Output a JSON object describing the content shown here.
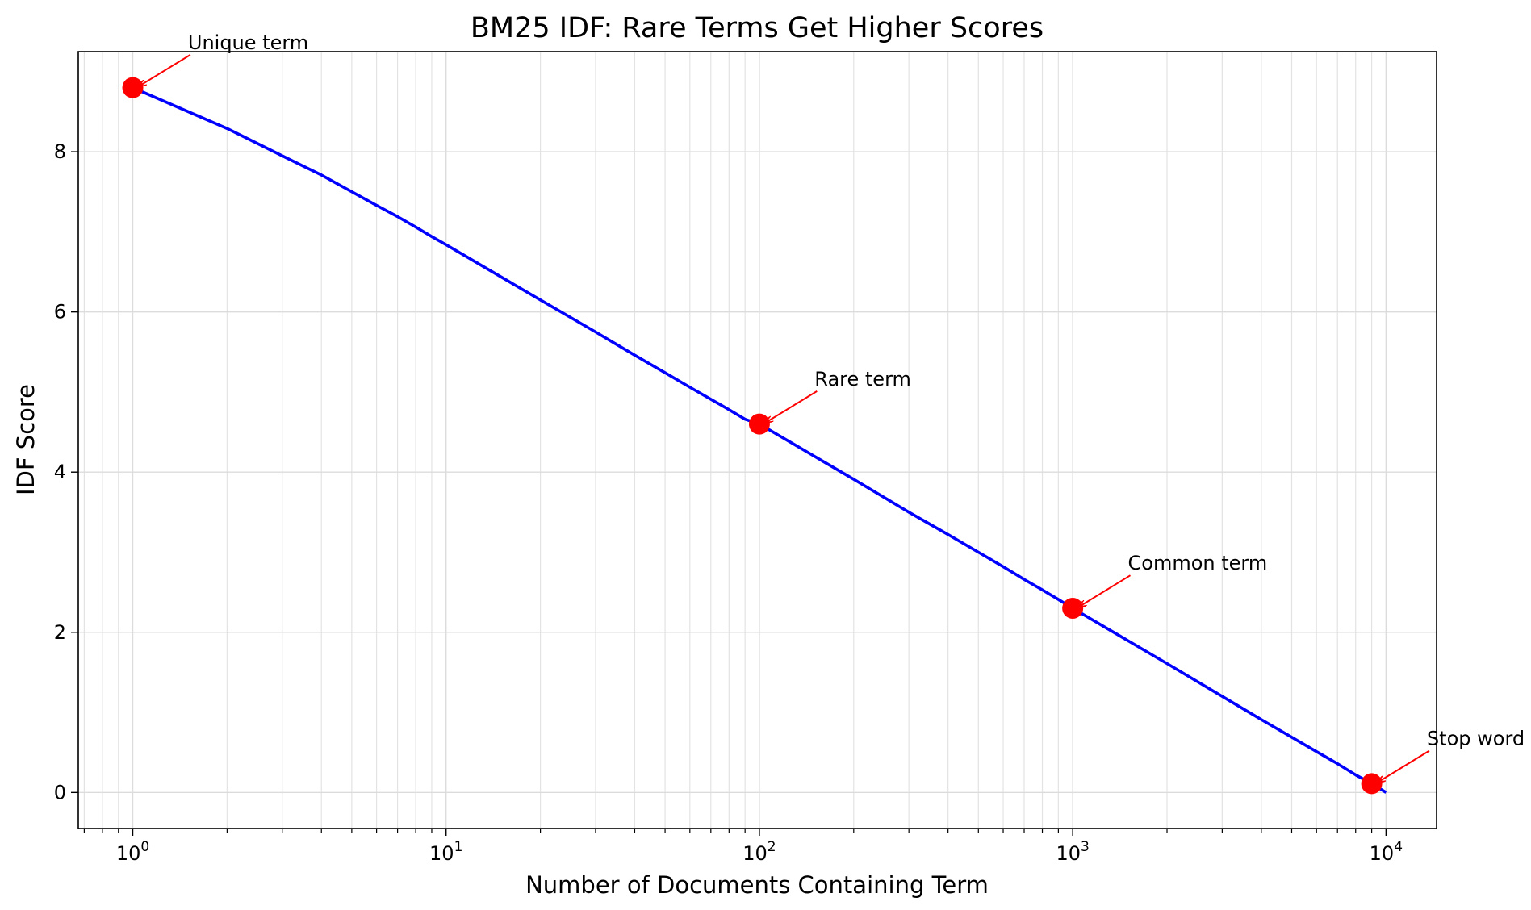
{
  "chart_data": {
    "type": "line",
    "title": "BM25 IDF: Rare Terms Get Higher Scores",
    "xlabel": "Number of Documents Containing Term",
    "ylabel": "IDF Score",
    "xscale": "log",
    "xlim": [
      0.67,
      14500
    ],
    "ylim": [
      -0.45,
      9.25
    ],
    "grid": true,
    "x_ticks": [
      {
        "base": "10",
        "exp": "0"
      },
      {
        "base": "10",
        "exp": "1"
      },
      {
        "base": "10",
        "exp": "2"
      },
      {
        "base": "10",
        "exp": "3"
      },
      {
        "base": "10",
        "exp": "4"
      }
    ],
    "y_ticks": [
      "0",
      "2",
      "4",
      "6",
      "8"
    ],
    "series": [
      {
        "color": "#0000ff",
        "x": [
          1,
          2,
          3,
          4,
          5,
          6,
          7,
          8,
          9,
          10,
          20,
          30,
          40,
          50,
          60,
          70,
          80,
          90,
          100,
          200,
          300,
          400,
          500,
          600,
          700,
          800,
          900,
          1000,
          2000,
          3000,
          4000,
          5000,
          6000,
          7000,
          8000,
          9000,
          10000
        ],
        "y": [
          8.8,
          8.29,
          7.95,
          7.71,
          7.5,
          7.33,
          7.19,
          7.06,
          6.94,
          6.84,
          6.15,
          5.75,
          5.46,
          5.24,
          5.06,
          4.91,
          4.78,
          4.66,
          4.6,
          3.91,
          3.5,
          3.22,
          3.0,
          2.82,
          2.66,
          2.53,
          2.41,
          2.3,
          1.61,
          1.2,
          0.91,
          0.69,
          0.51,
          0.36,
          0.22,
          0.11,
          0.0
        ]
      }
    ],
    "highlights": {
      "color": "#ff0000",
      "points": [
        {
          "label": "Unique term",
          "x": 1,
          "y": 8.8
        },
        {
          "label": "Rare term",
          "x": 100,
          "y": 4.6
        },
        {
          "label": "Common term",
          "x": 1000,
          "y": 2.3
        },
        {
          "label": "Stop word",
          "x": 9000,
          "y": 0.11
        }
      ]
    }
  }
}
